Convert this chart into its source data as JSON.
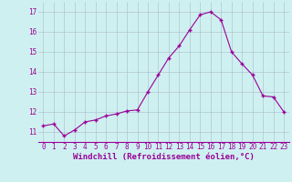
{
  "x_data": [
    0,
    1,
    2,
    3,
    4,
    5,
    6,
    7,
    8,
    9,
    10,
    11,
    12,
    13,
    14,
    15,
    16,
    17,
    18,
    19,
    20,
    21,
    22,
    23
  ],
  "y_data": [
    11.3,
    11.4,
    10.8,
    11.1,
    11.5,
    11.6,
    11.8,
    11.9,
    12.05,
    12.1,
    13.0,
    13.85,
    14.7,
    15.3,
    16.1,
    16.85,
    17.0,
    16.6,
    15.0,
    14.4,
    13.85,
    12.8,
    12.75,
    12.0
  ],
  "line_color": "#990099",
  "marker_color": "#990099",
  "bg_color": "#cff0f0",
  "grid_color": "#aabbcc",
  "xlabel": "Windchill (Refroidissement éolien,°C)",
  "xlim": [
    -0.5,
    23.5
  ],
  "ylim": [
    10.5,
    17.5
  ],
  "yticks": [
    11,
    12,
    13,
    14,
    15,
    16,
    17
  ],
  "xticks": [
    0,
    1,
    2,
    3,
    4,
    5,
    6,
    7,
    8,
    9,
    10,
    11,
    12,
    13,
    14,
    15,
    16,
    17,
    18,
    19,
    20,
    21,
    22,
    23
  ],
  "xlabel_color": "#990099",
  "tick_color": "#990099",
  "label_fontsize": 6.5,
  "tick_fontsize": 5.5
}
